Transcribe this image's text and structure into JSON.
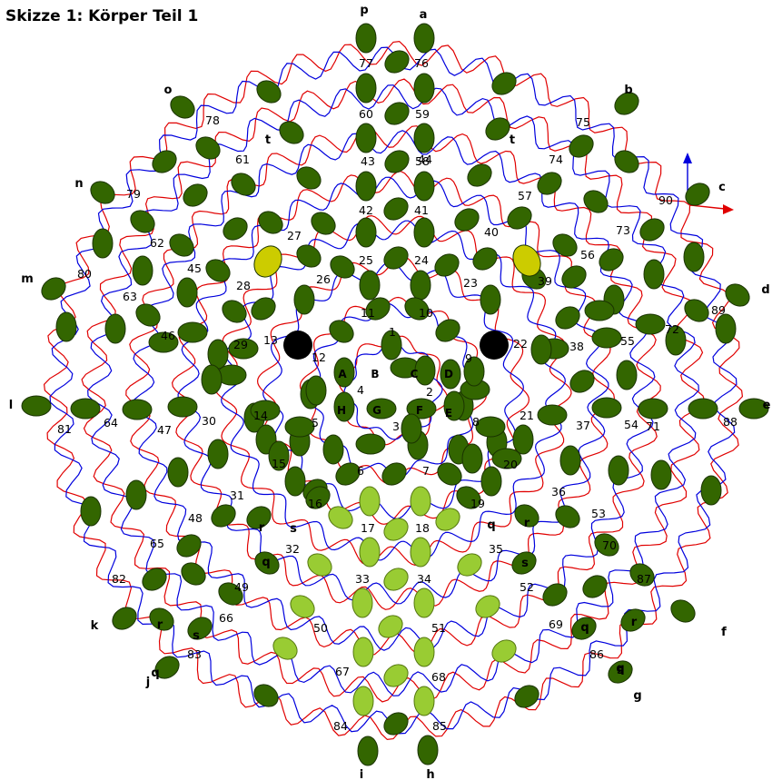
{
  "title": "Skizze 1: Körper Teil 1",
  "colors": {
    "dark_bead": "#336600",
    "dark_bead_stroke": "#1a3300",
    "light_bead": "#99cc33",
    "light_bead_stroke": "#557711",
    "yellow_bead": "#cccc00",
    "black_bead": "#000000",
    "red_thread": "#e00000",
    "blue_thread": "#0000dd"
  },
  "outer_labels": [
    "a",
    "b",
    "c",
    "d",
    "e",
    "f",
    "g",
    "h",
    "i",
    "j",
    "k",
    "l",
    "m",
    "n",
    "o",
    "p"
  ],
  "inner_letters": [
    "A",
    "B",
    "C",
    "D",
    "E",
    "F",
    "G",
    "H"
  ],
  "marker_letters": [
    "t",
    "t",
    "r",
    "r",
    "q",
    "q",
    "s",
    "s",
    "q",
    "r",
    "s",
    "q",
    "q",
    "r",
    "s"
  ],
  "bead_numbers": [
    "1",
    "2",
    "3",
    "4",
    "5",
    "6",
    "7",
    "8",
    "9",
    "10",
    "11",
    "12",
    "13",
    "14",
    "15",
    "16",
    "17",
    "18",
    "19",
    "20",
    "21",
    "22",
    "23",
    "24",
    "25",
    "26",
    "27",
    "28",
    "29",
    "30",
    "31",
    "32",
    "33",
    "34",
    "35",
    "36",
    "37",
    "38",
    "39",
    "40",
    "41",
    "42",
    "43",
    "44",
    "45",
    "46",
    "47",
    "48",
    "49",
    "50",
    "51",
    "52",
    "53",
    "54",
    "55",
    "56",
    "57",
    "58",
    "59",
    "60",
    "61",
    "62",
    "63",
    "64",
    "65",
    "66",
    "67",
    "68",
    "69",
    "70",
    "71",
    "72",
    "73",
    "74",
    "75",
    "76",
    "77",
    "78",
    "79",
    "80",
    "81",
    "82",
    "83",
    "84",
    "85",
    "86",
    "87",
    "88",
    "89",
    "90"
  ]
}
